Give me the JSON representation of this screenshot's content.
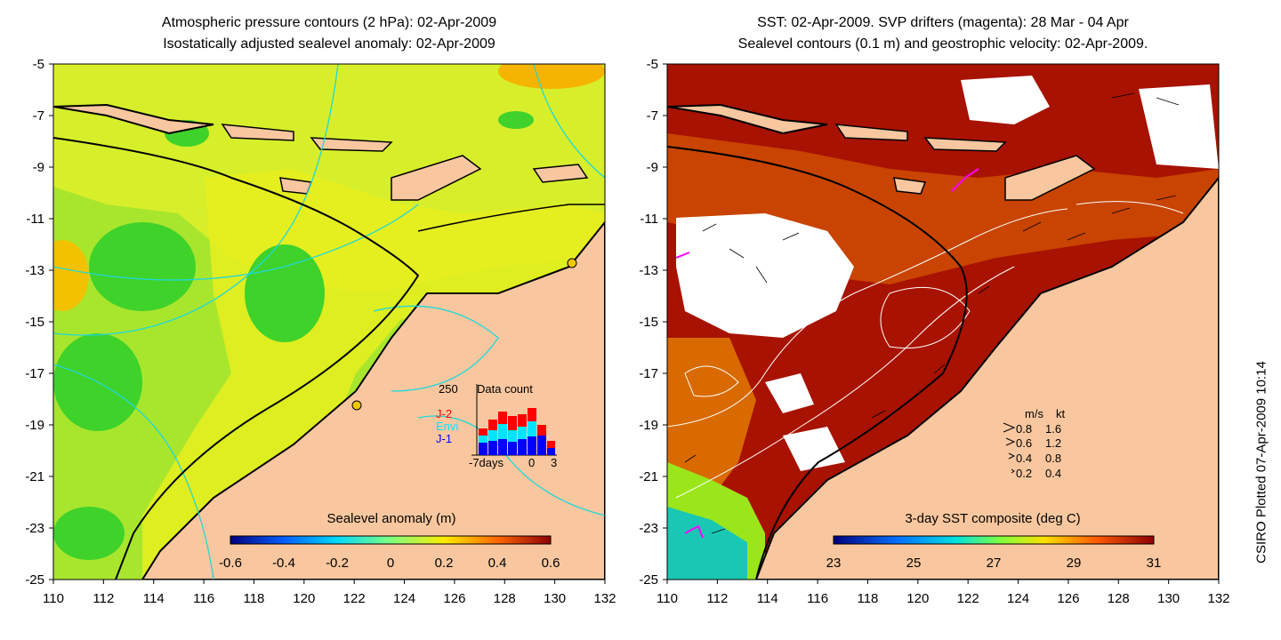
{
  "left_panel": {
    "title_line1": "Atmospheric pressure contours (2 hPa): 02-Apr-2009",
    "title_line2": "Isostatically adjusted sealevel anomaly: 02-Apr-2009",
    "colorbar_label": "Sealevel anomaly (m)",
    "colorbar_ticks": [
      "-0.6",
      "-0.4",
      "-0.2",
      "0",
      "0.2",
      "0.4",
      "0.6"
    ],
    "inset": {
      "count_max": "250",
      "title": "Data count",
      "sat_j2": "J-2",
      "sat_envi": "Envi",
      "sat_j1": "J-1",
      "x_start": "-7days",
      "x_zero": "0",
      "x_end": "3",
      "colors": {
        "j2": "#ff0000",
        "envi": "#00e5ff",
        "j1": "#0000ff"
      }
    }
  },
  "right_panel": {
    "title_line1": "SST: 02-Apr-2009. SVP drifters (magenta): 28 Mar - 04 Apr",
    "title_line2": "Sealevel contours (0.1 m) and geostrophic velocity: 02-Apr-2009.",
    "colorbar_label": "3-day SST composite (deg C)",
    "colorbar_ticks": [
      "23",
      "25",
      "27",
      "29",
      "31"
    ],
    "velocity_legend": {
      "header_ms": "m/s",
      "header_kt": "kt",
      "rows": [
        {
          "ms": "0.8",
          "kt": "1.6"
        },
        {
          "ms": "0.6",
          "kt": "1.2"
        },
        {
          "ms": "0.4",
          "kt": "0.8"
        },
        {
          "ms": "0.2",
          "kt": "0.4"
        }
      ]
    }
  },
  "axes": {
    "lon_ticks": [
      "110",
      "112",
      "114",
      "116",
      "118",
      "120",
      "122",
      "124",
      "126",
      "128",
      "130",
      "132"
    ],
    "lat_ticks": [
      "-5",
      "-7",
      "-9",
      "-11",
      "-13",
      "-15",
      "-17",
      "-19",
      "-21",
      "-23",
      "-25"
    ]
  },
  "credit": "CSIRO Plotted 07-Apr-2009 10:14",
  "colors": {
    "land": "#f9c79f",
    "coast": "#000000",
    "ocean_green": "#a8e62d",
    "warm_sst": "#a81200",
    "contour_cyan": "#20d8d8"
  }
}
